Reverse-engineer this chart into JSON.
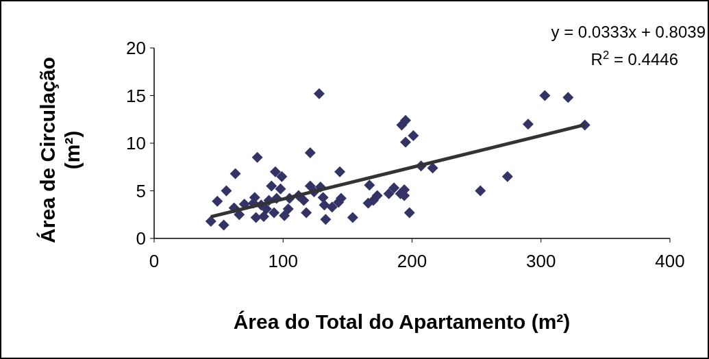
{
  "chart_data": {
    "type": "scatter",
    "xlabel": "Área do Total do Apartamento (m²)",
    "ylabel": "Área de Circulação\n(m²)",
    "xlim": [
      0,
      400
    ],
    "xticks": [
      0,
      100,
      200,
      300,
      400
    ],
    "ylim": [
      0,
      20
    ],
    "yticks": [
      0,
      5,
      10,
      15,
      20
    ],
    "grid": false,
    "marker": "diamond",
    "annotations": [
      "y = 0.0333x + 0.8039",
      "R$^{2}$ = 0.4446"
    ],
    "series": [
      {
        "color": "#333366",
        "x": [
          44,
          49,
          54,
          56,
          63,
          62,
          66,
          70,
          77,
          78,
          80,
          79,
          83,
          85,
          87,
          89,
          91,
          94,
          95,
          93,
          99,
          98,
          101,
          104,
          105,
          112,
          116,
          118,
          121,
          121,
          124,
          128,
          129,
          131,
          132,
          133,
          138,
          143,
          144,
          145,
          154,
          166,
          167,
          170,
          173,
          182,
          186,
          191,
          194,
          194,
          192,
          195,
          195,
          201,
          198,
          207,
          216,
          253,
          274,
          290,
          303,
          321,
          334
        ],
        "values": [
          1.8,
          3.9,
          1.4,
          5.0,
          6.8,
          3.2,
          2.5,
          3.6,
          3.7,
          4.3,
          8.5,
          2.2,
          3.5,
          2.3,
          3.1,
          4.0,
          5.5,
          7.0,
          4.2,
          2.7,
          6.5,
          5.2,
          2.4,
          3.1,
          4.2,
          4.5,
          4.0,
          2.7,
          9.0,
          5.5,
          4.9,
          15.2,
          5.4,
          4.3,
          3.5,
          2.0,
          3.3,
          3.8,
          7.0,
          4.2,
          2.2,
          3.7,
          5.6,
          4.0,
          4.5,
          4.7,
          5.3,
          4.7,
          4.5,
          5.1,
          11.9,
          12.4,
          10.1,
          10.8,
          2.7,
          7.6,
          7.4,
          5.0,
          6.5,
          12.0,
          15.0,
          14.8,
          11.9
        ]
      },
      {
        "type": "line",
        "color": "#333333",
        "marker": "none",
        "line_style": "solid",
        "x": [
          44,
          334
        ],
        "values": [
          2.27,
          11.93
        ]
      }
    ]
  }
}
